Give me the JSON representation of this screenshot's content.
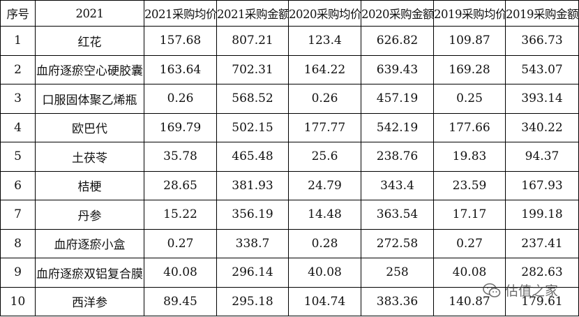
{
  "table": {
    "header": [
      "序号",
      "2021",
      "2021采购均价",
      "2021采购金额",
      "2020采购均价",
      "2020采购金额",
      "2019采购均价",
      "2019采购金额"
    ],
    "rows": [
      [
        "1",
        "红花",
        "157.68",
        "807.21",
        "123.4",
        "626.82",
        "109.87",
        "366.73"
      ],
      [
        "2",
        "血府逐瘀空心硬胶囊",
        "163.64",
        "702.31",
        "164.22",
        "639.43",
        "169.28",
        "543.07"
      ],
      [
        "3",
        "口服固体聚乙烯瓶",
        "0.26",
        "568.52",
        "0.26",
        "457.19",
        "0.25",
        "393.14"
      ],
      [
        "4",
        "欧巴代",
        "169.79",
        "502.15",
        "177.77",
        "542.19",
        "177.66",
        "340.22"
      ],
      [
        "5",
        "土茯苓",
        "35.78",
        "465.48",
        "25.6",
        "238.76",
        "19.83",
        "94.37"
      ],
      [
        "6",
        "桔梗",
        "28.65",
        "381.93",
        "24.79",
        "343.4",
        "23.59",
        "167.93"
      ],
      [
        "7",
        "丹参",
        "15.22",
        "356.19",
        "14.48",
        "363.54",
        "17.17",
        "199.18"
      ],
      [
        "8",
        "血府逐瘀小盒",
        "0.27",
        "338.7",
        "0.28",
        "272.58",
        "0.27",
        "237.41"
      ],
      [
        "9",
        "血府逐瘀双铝复合膜",
        "40.08",
        "296.14",
        "40.08",
        "258",
        "40.08",
        "282.63"
      ],
      [
        "10",
        "西洋参",
        "89.45",
        "295.18",
        "104.74",
        "383.36",
        "140.87",
        "179.61"
      ]
    ]
  },
  "watermark": "估值之家"
}
